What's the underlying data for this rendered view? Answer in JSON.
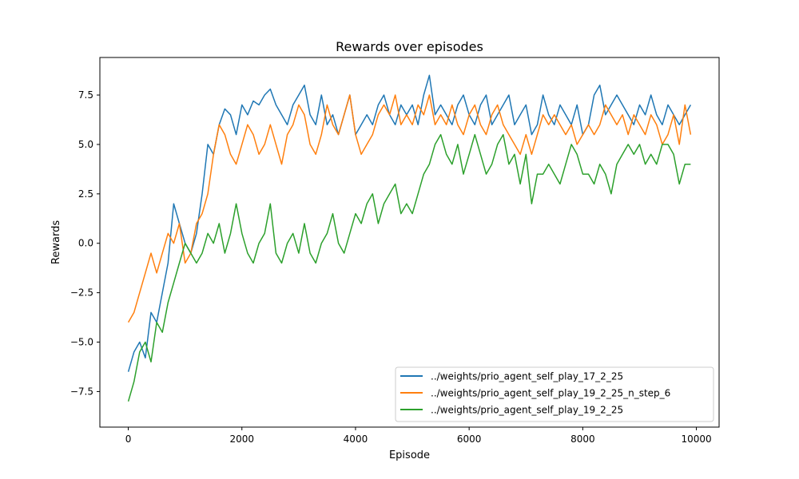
{
  "chart_data": {
    "type": "line",
    "title": "Rewards over episodes",
    "xlabel": "Episode",
    "ylabel": "Rewards",
    "xlim": [
      -500,
      10400
    ],
    "ylim": [
      -9.3,
      9.4
    ],
    "xticks": [
      0,
      2000,
      4000,
      6000,
      8000,
      10000
    ],
    "xtick_labels": [
      "0",
      "2000",
      "4000",
      "6000",
      "8000",
      "10000"
    ],
    "yticks": [
      -7.5,
      -5.0,
      -2.5,
      0.0,
      2.5,
      5.0,
      7.5
    ],
    "ytick_labels": [
      "−7.5",
      "−5.0",
      "−2.5",
      "0.0",
      "2.5",
      "5.0",
      "7.5"
    ],
    "grid": false,
    "legend_position": "lower-right",
    "series": [
      {
        "name": "../weights/prio_agent_self_play_17_2_25",
        "color": "#1f77b4",
        "x": [
          0,
          100,
          200,
          300,
          400,
          500,
          600,
          700,
          800,
          900,
          1000,
          1100,
          1200,
          1300,
          1400,
          1500,
          1600,
          1700,
          1800,
          1900,
          2000,
          2100,
          2200,
          2300,
          2400,
          2500,
          2600,
          2700,
          2800,
          2900,
          3000,
          3100,
          3200,
          3300,
          3400,
          3500,
          3600,
          3700,
          3800,
          3900,
          4000,
          4100,
          4200,
          4300,
          4400,
          4500,
          4600,
          4700,
          4800,
          4900,
          5000,
          5100,
          5200,
          5300,
          5400,
          5500,
          5600,
          5700,
          5800,
          5900,
          6000,
          6100,
          6200,
          6300,
          6400,
          6500,
          6600,
          6700,
          6800,
          6900,
          7000,
          7100,
          7200,
          7300,
          7400,
          7500,
          7600,
          7700,
          7800,
          7900,
          8000,
          8100,
          8200,
          8300,
          8400,
          8500,
          8600,
          8700,
          8800,
          8900,
          9000,
          9100,
          9200,
          9300,
          9400,
          9500,
          9600,
          9700,
          9800,
          9900
        ],
        "y": [
          -6.5,
          -5.5,
          -5.0,
          -5.8,
          -3.5,
          -4.0,
          -2.5,
          -1.0,
          2.0,
          1.0,
          0.0,
          -0.5,
          0.5,
          2.5,
          5.0,
          4.5,
          6.0,
          6.8,
          6.5,
          5.5,
          7.0,
          6.5,
          7.2,
          7.0,
          7.5,
          7.8,
          7.0,
          6.5,
          6.0,
          7.0,
          7.5,
          8.0,
          6.5,
          6.0,
          7.5,
          6.0,
          6.5,
          5.5,
          6.5,
          7.5,
          5.5,
          6.0,
          6.5,
          6.0,
          7.0,
          7.5,
          6.5,
          6.0,
          7.0,
          6.5,
          7.0,
          6.0,
          7.5,
          8.5,
          6.5,
          7.0,
          6.5,
          6.0,
          7.0,
          7.5,
          6.5,
          6.0,
          7.0,
          7.5,
          6.0,
          6.5,
          7.0,
          7.5,
          6.0,
          6.5,
          7.0,
          5.5,
          6.0,
          7.5,
          6.5,
          6.0,
          7.0,
          6.5,
          6.0,
          7.0,
          5.5,
          6.0,
          7.5,
          8.0,
          6.5,
          7.0,
          7.5,
          7.0,
          6.5,
          6.0,
          7.0,
          6.5,
          7.5,
          6.5,
          6.0,
          7.0,
          6.5,
          6.0,
          6.5,
          7.0
        ]
      },
      {
        "name": "../weights/prio_agent_self_play_19_2_25_n_step_6",
        "color": "#ff7f0e",
        "x": [
          0,
          100,
          200,
          300,
          400,
          500,
          600,
          700,
          800,
          900,
          1000,
          1100,
          1200,
          1300,
          1400,
          1500,
          1600,
          1700,
          1800,
          1900,
          2000,
          2100,
          2200,
          2300,
          2400,
          2500,
          2600,
          2700,
          2800,
          2900,
          3000,
          3100,
          3200,
          3300,
          3400,
          3500,
          3600,
          3700,
          3800,
          3900,
          4000,
          4100,
          4200,
          4300,
          4400,
          4500,
          4600,
          4700,
          4800,
          4900,
          5000,
          5100,
          5200,
          5300,
          5400,
          5500,
          5600,
          5700,
          5800,
          5900,
          6000,
          6100,
          6200,
          6300,
          6400,
          6500,
          6600,
          6700,
          6800,
          6900,
          7000,
          7100,
          7200,
          7300,
          7400,
          7500,
          7600,
          7700,
          7800,
          7900,
          8000,
          8100,
          8200,
          8300,
          8400,
          8500,
          8600,
          8700,
          8800,
          8900,
          9000,
          9100,
          9200,
          9300,
          9400,
          9500,
          9600,
          9700,
          9800,
          9900
        ],
        "y": [
          -4.0,
          -3.5,
          -2.5,
          -1.5,
          -0.5,
          -1.5,
          -0.5,
          0.5,
          0.0,
          1.0,
          -1.0,
          -0.5,
          1.0,
          1.5,
          2.5,
          4.5,
          6.0,
          5.5,
          4.5,
          4.0,
          5.0,
          6.0,
          5.5,
          4.5,
          5.0,
          6.0,
          5.0,
          4.0,
          5.5,
          6.0,
          7.0,
          6.5,
          5.0,
          4.5,
          5.5,
          7.0,
          6.0,
          5.5,
          6.5,
          7.5,
          5.5,
          4.5,
          5.0,
          5.5,
          6.5,
          7.0,
          6.5,
          7.5,
          6.0,
          6.5,
          6.0,
          7.0,
          6.5,
          7.5,
          6.0,
          6.5,
          6.0,
          7.0,
          6.0,
          5.5,
          6.5,
          7.0,
          6.0,
          5.5,
          6.5,
          7.0,
          6.0,
          5.5,
          5.0,
          4.5,
          5.5,
          4.5,
          5.5,
          6.5,
          6.0,
          6.5,
          6.0,
          5.5,
          6.0,
          5.0,
          5.5,
          6.0,
          5.5,
          6.0,
          7.0,
          6.5,
          6.0,
          6.5,
          5.5,
          6.5,
          6.0,
          5.5,
          6.5,
          6.0,
          5.0,
          5.5,
          6.5,
          5.0,
          7.0,
          5.5
        ]
      },
      {
        "name": "../weights/prio_agent_self_play_19_2_25",
        "color": "#2ca02c",
        "x": [
          0,
          100,
          200,
          300,
          400,
          500,
          600,
          700,
          800,
          900,
          1000,
          1100,
          1200,
          1300,
          1400,
          1500,
          1600,
          1700,
          1800,
          1900,
          2000,
          2100,
          2200,
          2300,
          2400,
          2500,
          2600,
          2700,
          2800,
          2900,
          3000,
          3100,
          3200,
          3300,
          3400,
          3500,
          3600,
          3700,
          3800,
          3900,
          4000,
          4100,
          4200,
          4300,
          4400,
          4500,
          4600,
          4700,
          4800,
          4900,
          5000,
          5100,
          5200,
          5300,
          5400,
          5500,
          5600,
          5700,
          5800,
          5900,
          6000,
          6100,
          6200,
          6300,
          6400,
          6500,
          6600,
          6700,
          6800,
          6900,
          7000,
          7100,
          7200,
          7300,
          7400,
          7500,
          7600,
          7700,
          7800,
          7900,
          8000,
          8100,
          8200,
          8300,
          8400,
          8500,
          8600,
          8700,
          8800,
          8900,
          9000,
          9100,
          9200,
          9300,
          9400,
          9500,
          9600,
          9700,
          9800,
          9900
        ],
        "y": [
          -8.0,
          -7.0,
          -5.5,
          -5.0,
          -6.0,
          -4.0,
          -4.5,
          -3.0,
          -2.0,
          -1.0,
          0.0,
          -0.5,
          -1.0,
          -0.5,
          0.5,
          0.0,
          1.0,
          -0.5,
          0.5,
          2.0,
          0.5,
          -0.5,
          -1.0,
          0.0,
          0.5,
          2.0,
          -0.5,
          -1.0,
          0.0,
          0.5,
          -0.5,
          1.0,
          -0.5,
          -1.0,
          0.0,
          0.5,
          1.5,
          0.0,
          -0.5,
          0.5,
          1.5,
          1.0,
          2.0,
          2.5,
          1.0,
          2.0,
          2.5,
          3.0,
          1.5,
          2.0,
          1.5,
          2.5,
          3.5,
          4.0,
          5.0,
          5.5,
          4.5,
          4.0,
          5.0,
          3.5,
          4.5,
          5.5,
          4.5,
          3.5,
          4.0,
          5.0,
          5.5,
          4.0,
          4.5,
          3.0,
          4.5,
          2.0,
          3.5,
          3.5,
          4.0,
          3.5,
          3.0,
          4.0,
          5.0,
          4.5,
          3.5,
          3.5,
          3.0,
          4.0,
          3.5,
          2.5,
          4.0,
          4.5,
          5.0,
          4.5,
          5.0,
          4.0,
          4.5,
          4.0,
          5.0,
          5.0,
          4.5,
          3.0,
          4.0,
          4.0
        ]
      }
    ]
  }
}
